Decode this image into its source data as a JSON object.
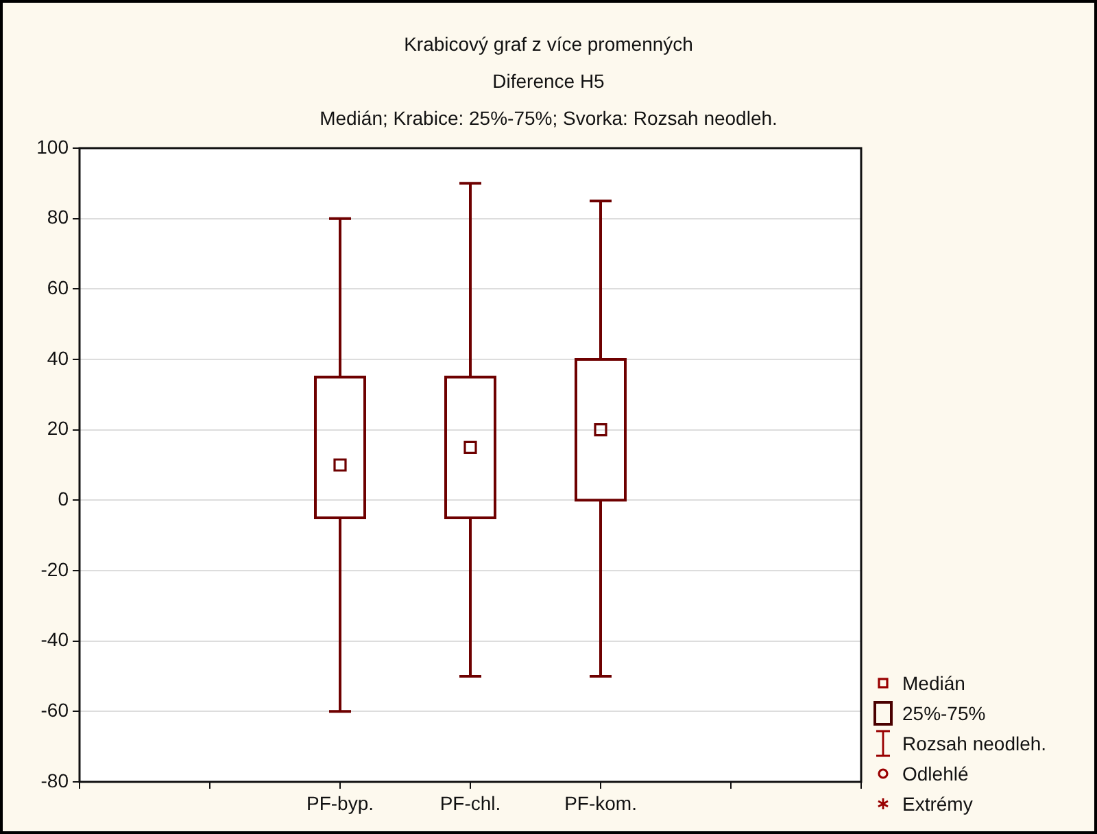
{
  "chart_data": {
    "type": "box",
    "title": "Krabicový graf z více promenných",
    "subtitle": "Diference H5\nMedián; Krabice: 25%-75%; Svorka: Rozsah neodleh.",
    "categories": [
      null,
      null,
      "PF-byp.",
      "PF-chl.",
      "PF-kom.",
      null,
      null
    ],
    "series": [
      {
        "color": "#6e0000",
        "boxes": [
          null,
          null,
          {
            "low": -60,
            "q1": -5,
            "median": 10,
            "q3": 35,
            "high": 80
          },
          {
            "low": -50,
            "q1": -5,
            "median": 15,
            "q3": 35,
            "high": 90
          },
          {
            "low": -50,
            "q1": 0,
            "median": 20,
            "q3": 40,
            "high": 85
          },
          null,
          null
        ]
      }
    ],
    "ylim": [
      -80,
      100
    ],
    "yticks": [
      -80,
      -60,
      -40,
      -20,
      0,
      20,
      40,
      60,
      80,
      100
    ],
    "grid": "y",
    "legend": false,
    "annotations": [
      "Medián",
      "25%-75%",
      "Rozsah neodleh.",
      "Odlehlé",
      "Extrémy"
    ]
  }
}
